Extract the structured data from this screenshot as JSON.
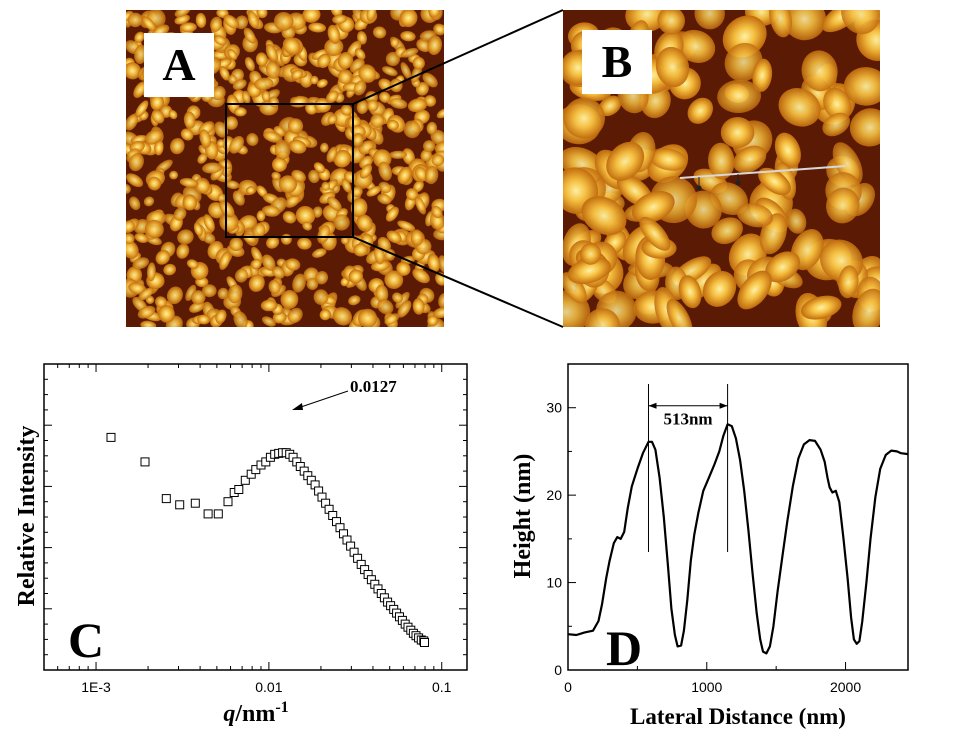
{
  "panels": {
    "a": {
      "label": "A"
    },
    "b": {
      "label": "B"
    },
    "c": {
      "label": "C"
    },
    "d": {
      "label": "D"
    }
  },
  "colors": {
    "afm_dark": "#5a1a04",
    "afm_mid": "#c06a0c",
    "afm_bright": "#f6c040",
    "afm_highlight": "#fff3a6",
    "ink": "#000000"
  },
  "chart_data": [
    {
      "type": "scatter",
      "panel": "C",
      "marker": "open-square",
      "x_scale": "log",
      "xlim": [
        0.0005,
        0.14
      ],
      "ylim": [
        0,
        10
      ],
      "x_ticks": [
        0.001,
        0.01,
        0.1
      ],
      "x_tick_labels": [
        "1E-3",
        "0.01",
        "0.1"
      ],
      "xlabel": "q/nm-1",
      "ylabel": "Relative Intensity",
      "annotation": {
        "text": "0.0127",
        "x": 0.0127,
        "y": 6.9
      },
      "points": [
        [
          0.00122,
          7.6
        ],
        [
          0.00192,
          6.8
        ],
        [
          0.00255,
          5.6
        ],
        [
          0.00305,
          5.4
        ],
        [
          0.00375,
          5.45
        ],
        [
          0.00445,
          5.1
        ],
        [
          0.0051,
          5.1
        ],
        [
          0.0058,
          5.5
        ],
        [
          0.0063,
          5.8
        ],
        [
          0.0067,
          5.9
        ],
        [
          0.0073,
          6.2
        ],
        [
          0.0079,
          6.4
        ],
        [
          0.0084,
          6.55
        ],
        [
          0.009,
          6.7
        ],
        [
          0.0096,
          6.8
        ],
        [
          0.0102,
          6.95
        ],
        [
          0.0108,
          7.05
        ],
        [
          0.0114,
          7.08
        ],
        [
          0.012,
          7.1
        ],
        [
          0.0126,
          7.1
        ],
        [
          0.0132,
          7.05
        ],
        [
          0.0138,
          6.95
        ],
        [
          0.0145,
          6.8
        ],
        [
          0.0152,
          6.65
        ],
        [
          0.016,
          6.5
        ],
        [
          0.0168,
          6.35
        ],
        [
          0.0176,
          6.2
        ],
        [
          0.0185,
          6.05
        ],
        [
          0.0194,
          5.85
        ],
        [
          0.0203,
          5.65
        ],
        [
          0.0213,
          5.45
        ],
        [
          0.0223,
          5.25
        ],
        [
          0.0234,
          5.05
        ],
        [
          0.0246,
          4.85
        ],
        [
          0.0258,
          4.65
        ],
        [
          0.027,
          4.45
        ],
        [
          0.0283,
          4.25
        ],
        [
          0.0297,
          4.05
        ],
        [
          0.0311,
          3.85
        ],
        [
          0.0326,
          3.65
        ],
        [
          0.0342,
          3.45
        ],
        [
          0.0358,
          3.28
        ],
        [
          0.0375,
          3.12
        ],
        [
          0.0392,
          2.95
        ],
        [
          0.041,
          2.8
        ],
        [
          0.0428,
          2.65
        ],
        [
          0.0447,
          2.5
        ],
        [
          0.0466,
          2.36
        ],
        [
          0.0486,
          2.22
        ],
        [
          0.0506,
          2.1
        ],
        [
          0.0527,
          1.98
        ],
        [
          0.0548,
          1.86
        ],
        [
          0.057,
          1.74
        ],
        [
          0.0592,
          1.62
        ],
        [
          0.0615,
          1.5
        ],
        [
          0.0638,
          1.4
        ],
        [
          0.0662,
          1.3
        ],
        [
          0.0686,
          1.2
        ],
        [
          0.071,
          1.12
        ],
        [
          0.0735,
          1.05
        ],
        [
          0.0762,
          0.98
        ],
        [
          0.0787,
          0.95
        ],
        [
          0.0795,
          0.9
        ]
      ]
    },
    {
      "type": "line",
      "panel": "D",
      "xlim": [
        0,
        2450
      ],
      "ylim": [
        0,
        35
      ],
      "x_ticks": [
        0,
        1000,
        2000
      ],
      "y_ticks": [
        0,
        10,
        20,
        30
      ],
      "xlabel": "Lateral Distance (nm)",
      "ylabel": "Height (nm)",
      "annotation": {
        "text": "513nm",
        "x1": 580,
        "x2": 1150,
        "y": 30
      },
      "points": [
        [
          0,
          4.1
        ],
        [
          60,
          4.0
        ],
        [
          120,
          4.3
        ],
        [
          180,
          4.5
        ],
        [
          220,
          5.6
        ],
        [
          245,
          7.5
        ],
        [
          275,
          10.5
        ],
        [
          300,
          12.5
        ],
        [
          330,
          14.5
        ],
        [
          355,
          15.2
        ],
        [
          380,
          15.0
        ],
        [
          405,
          15.8
        ],
        [
          430,
          18.5
        ],
        [
          460,
          21.0
        ],
        [
          500,
          23.0
        ],
        [
          540,
          24.8
        ],
        [
          580,
          26.1
        ],
        [
          605,
          26.1
        ],
        [
          630,
          25.2
        ],
        [
          660,
          22.0
        ],
        [
          690,
          17.5
        ],
        [
          720,
          12.0
        ],
        [
          745,
          7.0
        ],
        [
          770,
          4.0
        ],
        [
          790,
          2.7
        ],
        [
          815,
          2.8
        ],
        [
          835,
          4.5
        ],
        [
          860,
          8.0
        ],
        [
          885,
          12.5
        ],
        [
          910,
          15.5
        ],
        [
          940,
          18.0
        ],
        [
          975,
          20.5
        ],
        [
          1015,
          22.0
        ],
        [
          1055,
          23.5
        ],
        [
          1090,
          25.0
        ],
        [
          1120,
          26.8
        ],
        [
          1150,
          28.1
        ],
        [
          1180,
          27.9
        ],
        [
          1210,
          26.5
        ],
        [
          1240,
          24.0
        ],
        [
          1270,
          20.5
        ],
        [
          1300,
          16.0
        ],
        [
          1330,
          11.0
        ],
        [
          1360,
          6.5
        ],
        [
          1385,
          3.5
        ],
        [
          1405,
          2.1
        ],
        [
          1430,
          1.9
        ],
        [
          1455,
          2.7
        ],
        [
          1480,
          5.0
        ],
        [
          1510,
          9.0
        ],
        [
          1545,
          13.0
        ],
        [
          1580,
          17.0
        ],
        [
          1620,
          21.0
        ],
        [
          1660,
          24.2
        ],
        [
          1700,
          25.8
        ],
        [
          1740,
          26.3
        ],
        [
          1780,
          26.2
        ],
        [
          1820,
          25.2
        ],
        [
          1850,
          23.8
        ],
        [
          1870,
          22.0
        ],
        [
          1885,
          20.9
        ],
        [
          1905,
          20.3
        ],
        [
          1930,
          20.5
        ],
        [
          1955,
          19.2
        ],
        [
          1985,
          15.0
        ],
        [
          2015,
          10.5
        ],
        [
          2040,
          6.0
        ],
        [
          2060,
          3.5
        ],
        [
          2080,
          3.0
        ],
        [
          2100,
          3.3
        ],
        [
          2120,
          5.5
        ],
        [
          2150,
          10.0
        ],
        [
          2180,
          15.0
        ],
        [
          2215,
          19.8
        ],
        [
          2250,
          23.0
        ],
        [
          2290,
          24.6
        ],
        [
          2330,
          25.1
        ],
        [
          2370,
          25.0
        ],
        [
          2400,
          24.8
        ],
        [
          2450,
          24.7
        ]
      ]
    }
  ]
}
